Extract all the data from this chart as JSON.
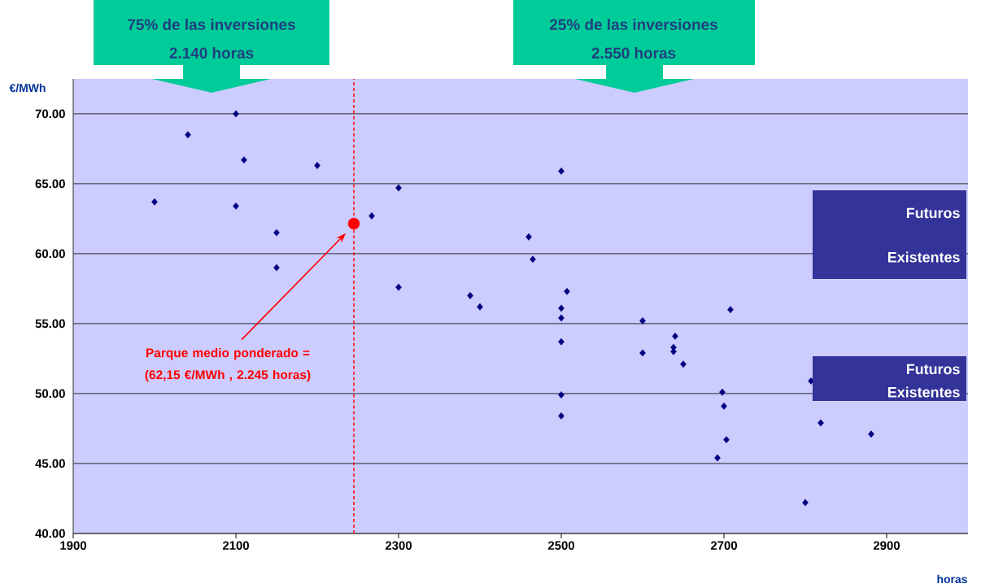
{
  "chart_data": {
    "type": "scatter",
    "xlabel": "horas",
    "ylabel": "€/MWh",
    "xlim": [
      1900,
      3000
    ],
    "xticks": [
      1900,
      2100,
      2300,
      2500,
      2700,
      2900
    ],
    "ylim": [
      40,
      72.5
    ],
    "yticks": [
      {
        "value": 40,
        "label": "40.00"
      },
      {
        "value": 45,
        "label": "45.00"
      },
      {
        "value": 50,
        "label": "50.00"
      },
      {
        "value": 55,
        "label": "55.00"
      },
      {
        "value": 60,
        "label": "60.00"
      },
      {
        "value": 65,
        "label": "65.00"
      },
      {
        "value": 70,
        "label": "70.00"
      }
    ],
    "grid": "y",
    "marker": "diamond",
    "series": [
      {
        "color": "#000080",
        "x": [
          2000,
          2041,
          2100,
          2100,
          2110,
          2150,
          2150,
          2200,
          2267,
          2300,
          2300,
          2388,
          2400,
          2460,
          2465,
          2500,
          2500,
          2500,
          2500,
          2500,
          2500,
          2507,
          2600,
          2600,
          2638,
          2638,
          2640,
          2650,
          2692,
          2698,
          2700,
          2703,
          2708,
          2800,
          2807,
          2819,
          2881
        ],
        "values": [
          63.7,
          68.5,
          70.0,
          63.4,
          66.7,
          61.5,
          59.0,
          66.3,
          62.7,
          64.7,
          57.6,
          57.0,
          56.2,
          61.2,
          59.6,
          65.9,
          56.1,
          55.4,
          53.7,
          49.9,
          48.4,
          57.3,
          55.2,
          52.9,
          53.3,
          53.0,
          54.1,
          52.1,
          45.4,
          50.1,
          49.1,
          46.7,
          56.0,
          42.2,
          50.9,
          47.9,
          47.1
        ]
      },
      {
        "color": "#ff0000",
        "marker": "circle",
        "x": [
          2245
        ],
        "values": [
          62.15
        ]
      }
    ],
    "ref_lines": [
      {
        "axis": "x",
        "value": 2245,
        "color": "#ff0000",
        "line_style": "dashed"
      }
    ],
    "annotations": [
      "75% de las inversiones",
      "2.140 horas",
      "25% de las inversiones",
      "2.550 horas",
      "Parque medio ponderado = (62,15 €/MWh , 2.245 horas)",
      "Futuros",
      "Existentes",
      "Futuros",
      "Existentes"
    ]
  }
}
